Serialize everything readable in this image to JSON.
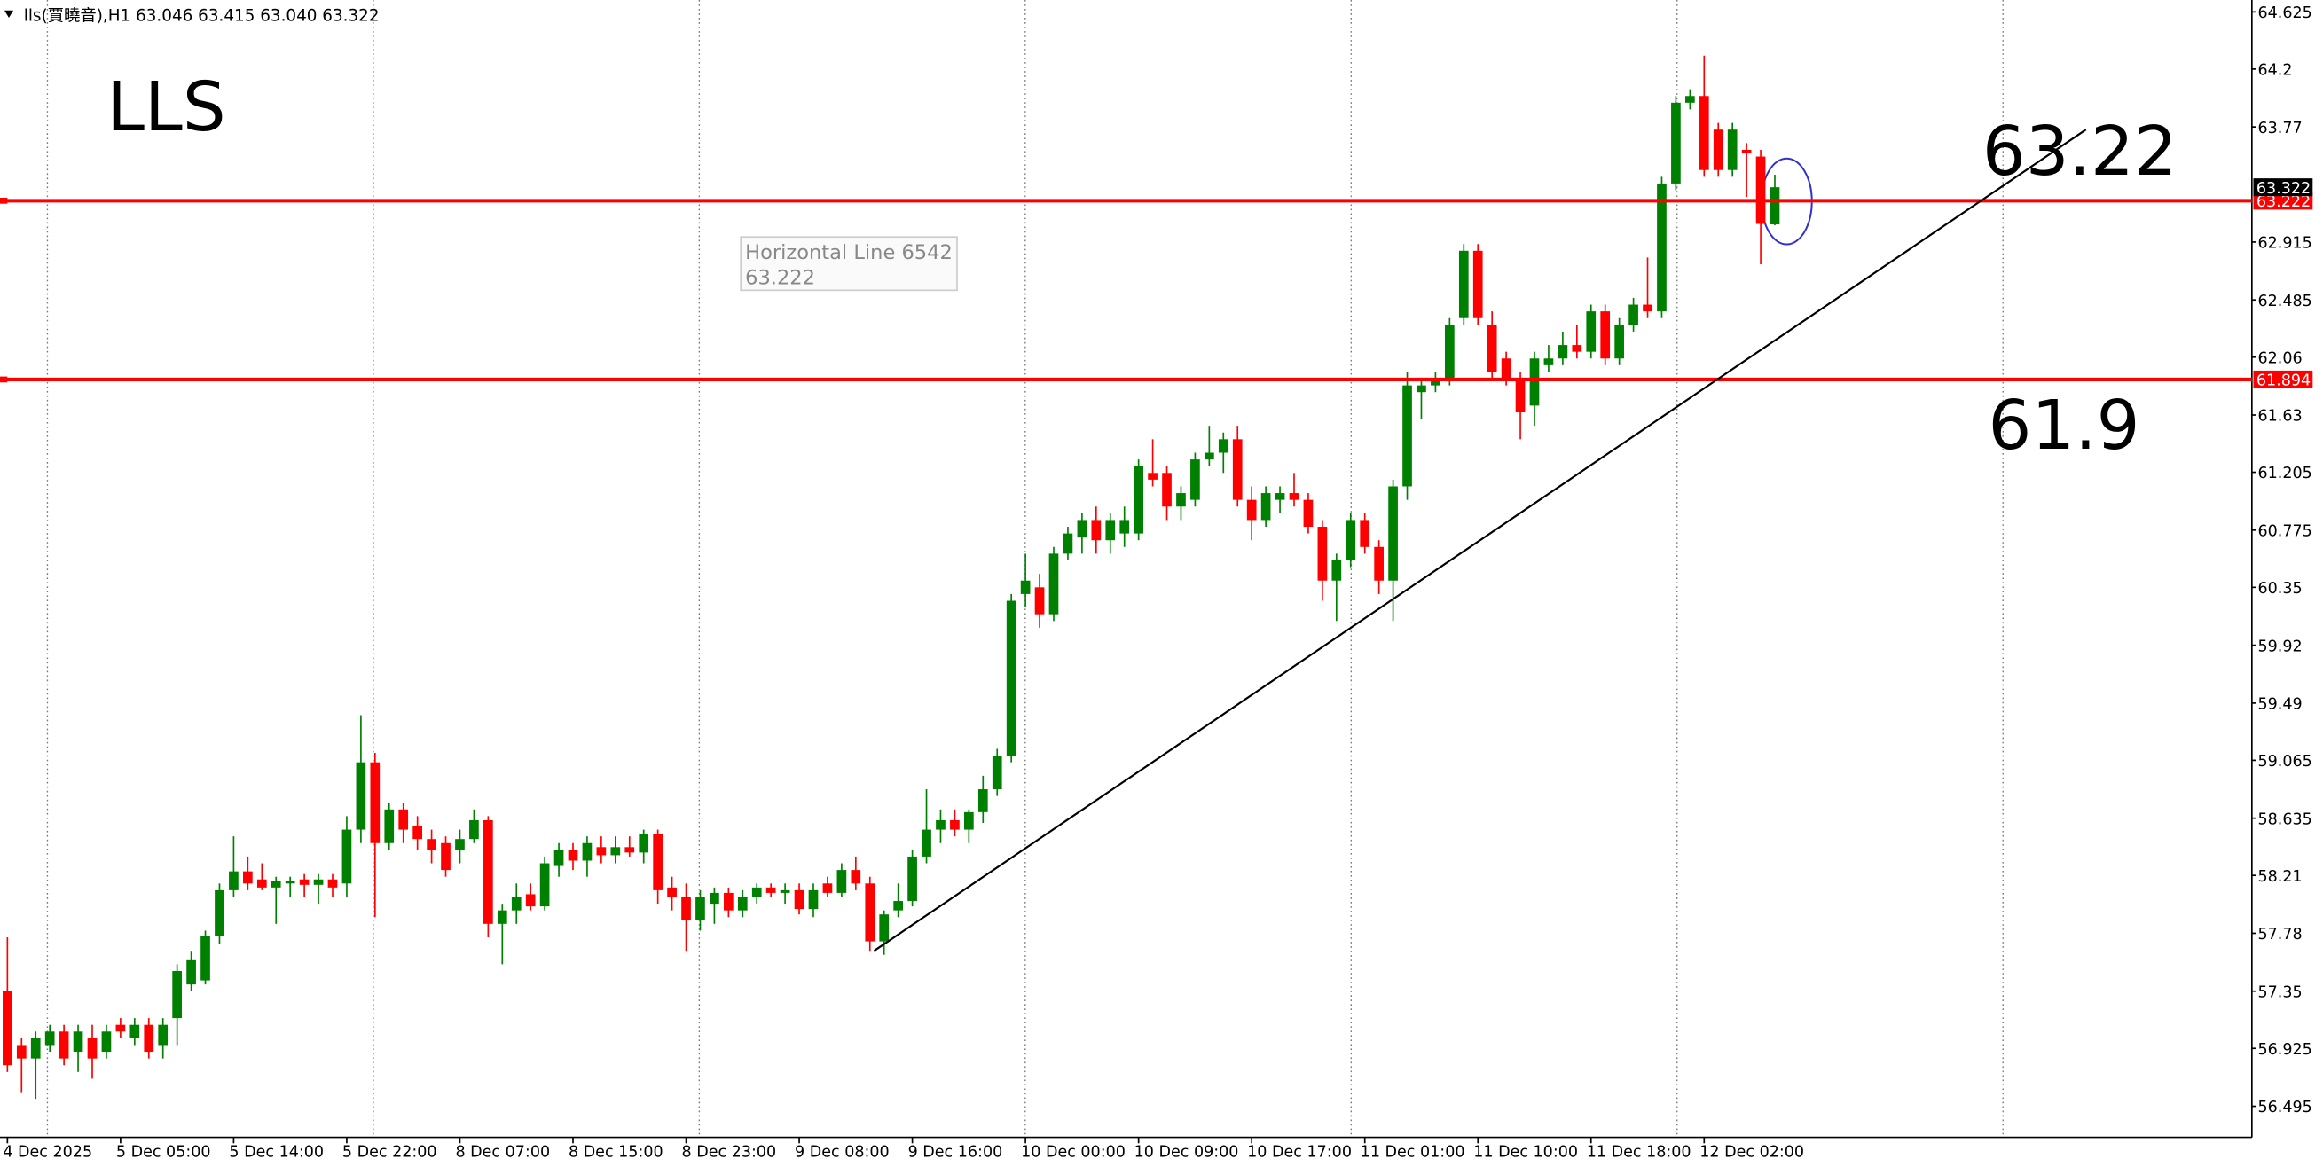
{
  "chart_data": {
    "type": "candlestick",
    "header": "lls(賈曉音),H1  63.046 63.415 63.040 63.322",
    "title": "LLS",
    "annotations": [
      "63.22",
      "61.9"
    ],
    "horizontal_lines": [
      {
        "name": "Horizontal Line 6542",
        "value": 63.222,
        "color": "#ff0000"
      },
      {
        "value": 61.894,
        "color": "#ff0000"
      }
    ],
    "trendline": {
      "x": [
        61.3,
        147
      ],
      "y": [
        57.65,
        63.75
      ],
      "color": "#000000"
    },
    "up_color": "#008000",
    "down_color": "#ff0000",
    "ylim": [
      56.264,
      64.713
    ],
    "yticks": [
      56.495,
      56.925,
      57.35,
      57.78,
      58.21,
      58.635,
      59.065,
      59.49,
      59.92,
      60.35,
      60.775,
      61.205,
      61.63,
      62.06,
      62.485,
      62.915,
      63.77,
      64.2,
      64.625
    ],
    "categories": [
      "4 Dec 2025",
      null,
      null,
      null,
      null,
      null,
      null,
      null,
      "5 Dec 05:00",
      null,
      null,
      null,
      null,
      null,
      null,
      null,
      "5 Dec 14:00",
      null,
      null,
      null,
      null,
      null,
      null,
      null,
      "5 Dec 22:00",
      null,
      null,
      null,
      null,
      null,
      null,
      null,
      "8 Dec 07:00",
      null,
      null,
      null,
      null,
      null,
      null,
      null,
      "8 Dec 15:00",
      null,
      null,
      null,
      null,
      null,
      null,
      null,
      "8 Dec 23:00",
      null,
      null,
      null,
      null,
      null,
      null,
      null,
      "9 Dec 08:00",
      null,
      null,
      null,
      null,
      null,
      null,
      null,
      "9 Dec 16:00",
      null,
      null,
      null,
      null,
      null,
      null,
      null,
      "10 Dec 00:00",
      null,
      null,
      null,
      null,
      null,
      null,
      null,
      "10 Dec 09:00",
      null,
      null,
      null,
      null,
      null,
      null,
      null,
      "10 Dec 17:00",
      null,
      null,
      null,
      null,
      null,
      null,
      null,
      "11 Dec 01:00",
      null,
      null,
      null,
      null,
      null,
      null,
      null,
      "11 Dec 10:00",
      null,
      null,
      null,
      null,
      null,
      null,
      null,
      "11 Dec 18:00",
      null,
      null,
      null,
      null,
      null,
      null,
      null,
      "12 Dec 02:00",
      null,
      null,
      null,
      null,
      null
    ],
    "open": [
      57.35,
      56.95,
      56.85,
      56.95,
      57.05,
      56.9,
      57.0,
      56.9,
      57.1,
      57.0,
      57.1,
      56.95,
      57.15,
      57.4,
      57.43,
      57.76,
      58.1,
      58.24,
      58.18,
      58.12,
      58.15,
      58.18,
      58.14,
      58.18,
      58.15,
      58.55,
      59.05,
      58.45,
      58.7,
      58.58,
      58.48,
      58.45,
      58.4,
      58.48,
      58.62,
      57.85,
      57.95,
      58.07,
      57.98,
      58.28,
      58.4,
      58.32,
      58.42,
      58.36,
      58.42,
      58.38,
      58.52,
      58.12,
      58.05,
      57.88,
      58.0,
      58.08,
      57.95,
      58.05,
      58.12,
      58.08,
      58.1,
      57.96,
      58.15,
      58.08,
      58.25,
      58.15,
      57.72,
      57.95,
      58.02,
      58.35,
      58.55,
      58.62,
      58.55,
      58.68,
      58.85,
      59.1,
      60.3,
      60.35,
      60.15,
      60.6,
      60.72,
      60.85,
      60.7,
      60.75,
      60.75,
      61.2,
      61.2,
      60.95,
      61.0,
      61.3,
      61.35,
      61.45,
      61.0,
      60.85,
      61.0,
      61.05,
      61.0,
      60.8,
      60.4,
      60.55,
      60.85,
      60.65,
      60.4,
      61.1,
      61.8,
      61.85,
      61.9,
      62.35,
      62.85,
      62.3,
      62.05,
      61.9,
      61.7,
      62.0,
      62.05,
      62.15,
      62.1,
      62.4,
      62.05,
      62.3,
      62.45,
      62.4,
      63.35,
      63.95,
      64.0,
      63.75,
      63.45,
      63.6,
      63.55,
      63.046
    ],
    "high": [
      57.75,
      57.0,
      57.05,
      57.1,
      57.1,
      57.1,
      57.1,
      57.1,
      57.15,
      57.15,
      57.15,
      57.15,
      57.55,
      57.65,
      57.8,
      58.15,
      58.5,
      58.35,
      58.3,
      58.2,
      58.2,
      58.22,
      58.22,
      58.22,
      58.65,
      59.4,
      59.12,
      58.75,
      58.75,
      58.65,
      58.55,
      58.5,
      58.55,
      58.7,
      58.65,
      58.0,
      58.15,
      58.15,
      58.35,
      58.45,
      58.45,
      58.5,
      58.5,
      58.5,
      58.5,
      58.55,
      58.55,
      58.2,
      58.15,
      58.1,
      58.12,
      58.12,
      58.1,
      58.15,
      58.15,
      58.15,
      58.15,
      58.15,
      58.2,
      58.3,
      58.35,
      58.2,
      57.95,
      58.15,
      58.4,
      58.85,
      58.7,
      58.7,
      58.7,
      58.95,
      59.15,
      60.3,
      60.6,
      60.45,
      60.65,
      60.8,
      60.9,
      60.95,
      60.9,
      60.95,
      61.3,
      61.45,
      61.25,
      61.1,
      61.35,
      61.55,
      61.5,
      61.55,
      61.1,
      61.1,
      61.1,
      61.2,
      61.05,
      60.85,
      60.6,
      60.9,
      60.9,
      60.7,
      61.15,
      61.95,
      61.9,
      61.95,
      62.35,
      62.9,
      62.9,
      62.4,
      62.1,
      61.95,
      62.1,
      62.15,
      62.25,
      62.3,
      62.45,
      62.45,
      62.35,
      62.5,
      62.8,
      63.4,
      64.0,
      64.05,
      64.3,
      63.8,
      63.8,
      63.65,
      63.6,
      63.415
    ],
    "low": [
      56.75,
      56.6,
      56.55,
      56.9,
      56.8,
      56.75,
      56.7,
      56.85,
      57.0,
      56.95,
      56.85,
      56.85,
      56.95,
      57.35,
      57.4,
      57.7,
      58.05,
      58.1,
      58.1,
      57.85,
      58.05,
      58.05,
      58.0,
      58.05,
      58.05,
      58.45,
      57.9,
      58.4,
      58.45,
      58.4,
      58.3,
      58.2,
      58.3,
      58.45,
      57.75,
      57.55,
      57.85,
      57.95,
      57.95,
      58.2,
      58.25,
      58.2,
      58.3,
      58.3,
      58.35,
      58.3,
      58.0,
      57.95,
      57.65,
      57.8,
      57.85,
      57.9,
      57.9,
      58.0,
      58.05,
      58.0,
      57.92,
      57.9,
      58.05,
      58.05,
      58.1,
      57.65,
      57.62,
      57.9,
      57.98,
      58.3,
      58.45,
      58.5,
      58.45,
      58.6,
      58.8,
      59.05,
      60.2,
      60.05,
      60.1,
      60.55,
      60.6,
      60.6,
      60.6,
      60.65,
      60.7,
      61.1,
      60.85,
      60.85,
      60.95,
      61.25,
      61.2,
      60.95,
      60.7,
      60.8,
      60.9,
      60.95,
      60.75,
      60.25,
      60.1,
      60.5,
      60.6,
      60.3,
      60.1,
      61.0,
      61.6,
      61.8,
      61.85,
      62.3,
      62.3,
      61.9,
      61.85,
      61.45,
      61.55,
      61.95,
      62.0,
      62.05,
      62.05,
      62.0,
      62.0,
      62.25,
      62.35,
      62.35,
      63.3,
      63.9,
      63.4,
      63.4,
      63.4,
      63.25,
      62.75,
      63.04
    ],
    "close": [
      56.8,
      56.85,
      57.0,
      57.05,
      56.85,
      57.05,
      56.85,
      57.05,
      57.05,
      57.1,
      56.9,
      57.1,
      57.5,
      57.58,
      57.76,
      58.1,
      58.24,
      58.15,
      58.12,
      58.17,
      58.17,
      58.14,
      58.18,
      58.12,
      58.55,
      59.05,
      58.45,
      58.7,
      58.55,
      58.48,
      58.4,
      58.25,
      58.48,
      58.62,
      57.85,
      57.95,
      58.05,
      57.98,
      58.3,
      58.4,
      58.32,
      58.45,
      58.36,
      58.42,
      58.38,
      58.52,
      58.1,
      58.05,
      57.88,
      58.05,
      58.08,
      57.95,
      58.05,
      58.12,
      58.08,
      58.1,
      57.96,
      58.1,
      58.08,
      58.25,
      58.15,
      57.72,
      57.92,
      58.02,
      58.35,
      58.55,
      58.62,
      58.55,
      58.68,
      58.85,
      59.1,
      60.25,
      60.4,
      60.15,
      60.6,
      60.75,
      60.85,
      60.7,
      60.85,
      60.85,
      61.25,
      61.15,
      60.95,
      61.05,
      61.3,
      61.35,
      61.45,
      61.0,
      60.85,
      61.05,
      61.05,
      61.0,
      60.8,
      60.4,
      60.55,
      60.85,
      60.65,
      60.4,
      61.1,
      61.85,
      61.85,
      61.9,
      62.3,
      62.85,
      62.35,
      61.95,
      61.9,
      61.65,
      62.05,
      62.05,
      62.15,
      62.1,
      62.4,
      62.05,
      62.3,
      62.45,
      62.4,
      63.35,
      63.95,
      64.0,
      63.45,
      63.45,
      63.75,
      63.58,
      63.05,
      63.322
    ]
  }
}
